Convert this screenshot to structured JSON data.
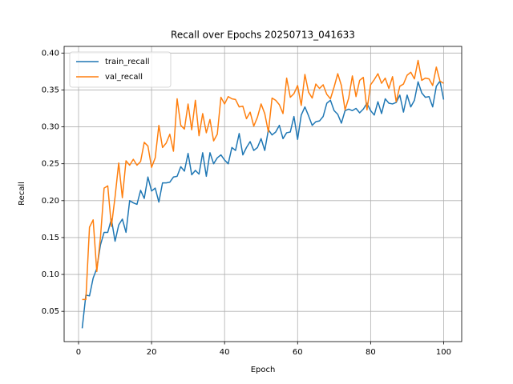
{
  "chart_data": {
    "type": "line",
    "title": "Recall over Epochs 20250713_041633",
    "xlabel": "Epoch",
    "ylabel": "Recall",
    "x": [
      1,
      2,
      3,
      4,
      5,
      6,
      7,
      8,
      9,
      10,
      11,
      12,
      13,
      14,
      15,
      16,
      17,
      18,
      19,
      20,
      21,
      22,
      23,
      24,
      25,
      26,
      27,
      28,
      29,
      30,
      31,
      32,
      33,
      34,
      35,
      36,
      37,
      38,
      39,
      40,
      41,
      42,
      43,
      44,
      45,
      46,
      47,
      48,
      49,
      50,
      51,
      52,
      53,
      54,
      55,
      56,
      57,
      58,
      59,
      60,
      61,
      62,
      63,
      64,
      65,
      66,
      67,
      68,
      69,
      70,
      71,
      72,
      73,
      74,
      75,
      76,
      77,
      78,
      79,
      80,
      81,
      82,
      83,
      84,
      85,
      86,
      87,
      88,
      89,
      90,
      91,
      92,
      93,
      94,
      95,
      96,
      97,
      98,
      99,
      100
    ],
    "series": [
      {
        "name": "train_recall",
        "color": "#1f77b4",
        "values": [
          0.027,
          0.072,
          0.071,
          0.095,
          0.108,
          0.14,
          0.157,
          0.157,
          0.175,
          0.145,
          0.167,
          0.175,
          0.157,
          0.2,
          0.197,
          0.195,
          0.214,
          0.203,
          0.232,
          0.213,
          0.217,
          0.198,
          0.224,
          0.224,
          0.225,
          0.232,
          0.233,
          0.246,
          0.24,
          0.264,
          0.235,
          0.241,
          0.236,
          0.265,
          0.233,
          0.265,
          0.25,
          0.258,
          0.262,
          0.255,
          0.25,
          0.272,
          0.268,
          0.291,
          0.262,
          0.272,
          0.28,
          0.268,
          0.272,
          0.284,
          0.268,
          0.296,
          0.289,
          0.293,
          0.302,
          0.284,
          0.292,
          0.293,
          0.314,
          0.283,
          0.316,
          0.327,
          0.315,
          0.302,
          0.307,
          0.308,
          0.314,
          0.332,
          0.336,
          0.322,
          0.317,
          0.305,
          0.322,
          0.324,
          0.322,
          0.325,
          0.319,
          0.324,
          0.332,
          0.322,
          0.316,
          0.334,
          0.318,
          0.338,
          0.332,
          0.331,
          0.333,
          0.343,
          0.32,
          0.343,
          0.327,
          0.336,
          0.361,
          0.346,
          0.34,
          0.341,
          0.327,
          0.355,
          0.362,
          0.337
        ]
      },
      {
        "name": "val_recall",
        "color": "#ff7f0e",
        "values": [
          0.066,
          0.066,
          0.164,
          0.174,
          0.104,
          0.15,
          0.217,
          0.22,
          0.165,
          0.205,
          0.251,
          0.204,
          0.254,
          0.248,
          0.256,
          0.248,
          0.253,
          0.279,
          0.274,
          0.245,
          0.258,
          0.302,
          0.272,
          0.278,
          0.29,
          0.267,
          0.338,
          0.302,
          0.297,
          0.331,
          0.296,
          0.336,
          0.288,
          0.318,
          0.292,
          0.31,
          0.281,
          0.29,
          0.34,
          0.331,
          0.341,
          0.338,
          0.337,
          0.327,
          0.328,
          0.311,
          0.32,
          0.301,
          0.313,
          0.331,
          0.318,
          0.293,
          0.339,
          0.336,
          0.33,
          0.318,
          0.366,
          0.34,
          0.345,
          0.356,
          0.329,
          0.371,
          0.347,
          0.339,
          0.358,
          0.352,
          0.357,
          0.344,
          0.338,
          0.354,
          0.372,
          0.356,
          0.323,
          0.339,
          0.369,
          0.341,
          0.363,
          0.367,
          0.323,
          0.357,
          0.364,
          0.372,
          0.359,
          0.366,
          0.352,
          0.368,
          0.334,
          0.355,
          0.358,
          0.37,
          0.374,
          0.365,
          0.39,
          0.363,
          0.366,
          0.365,
          0.356,
          0.381,
          0.362,
          0.359
        ]
      }
    ],
    "xlim": [
      -3.95,
      104.95
    ],
    "xticks": [
      0,
      20,
      40,
      60,
      80,
      100
    ],
    "ylim": [
      0.009,
      0.409
    ],
    "yticks": [
      0.05,
      {
        "value": 0.1,
        "label": "0.10"
      },
      0.15,
      {
        "value": 0.2,
        "label": "0.20"
      },
      0.25,
      {
        "value": 0.3,
        "label": "0.30"
      },
      0.35,
      {
        "value": 0.4,
        "label": "0.40"
      }
    ],
    "grid": true,
    "legend": "upper-left"
  }
}
